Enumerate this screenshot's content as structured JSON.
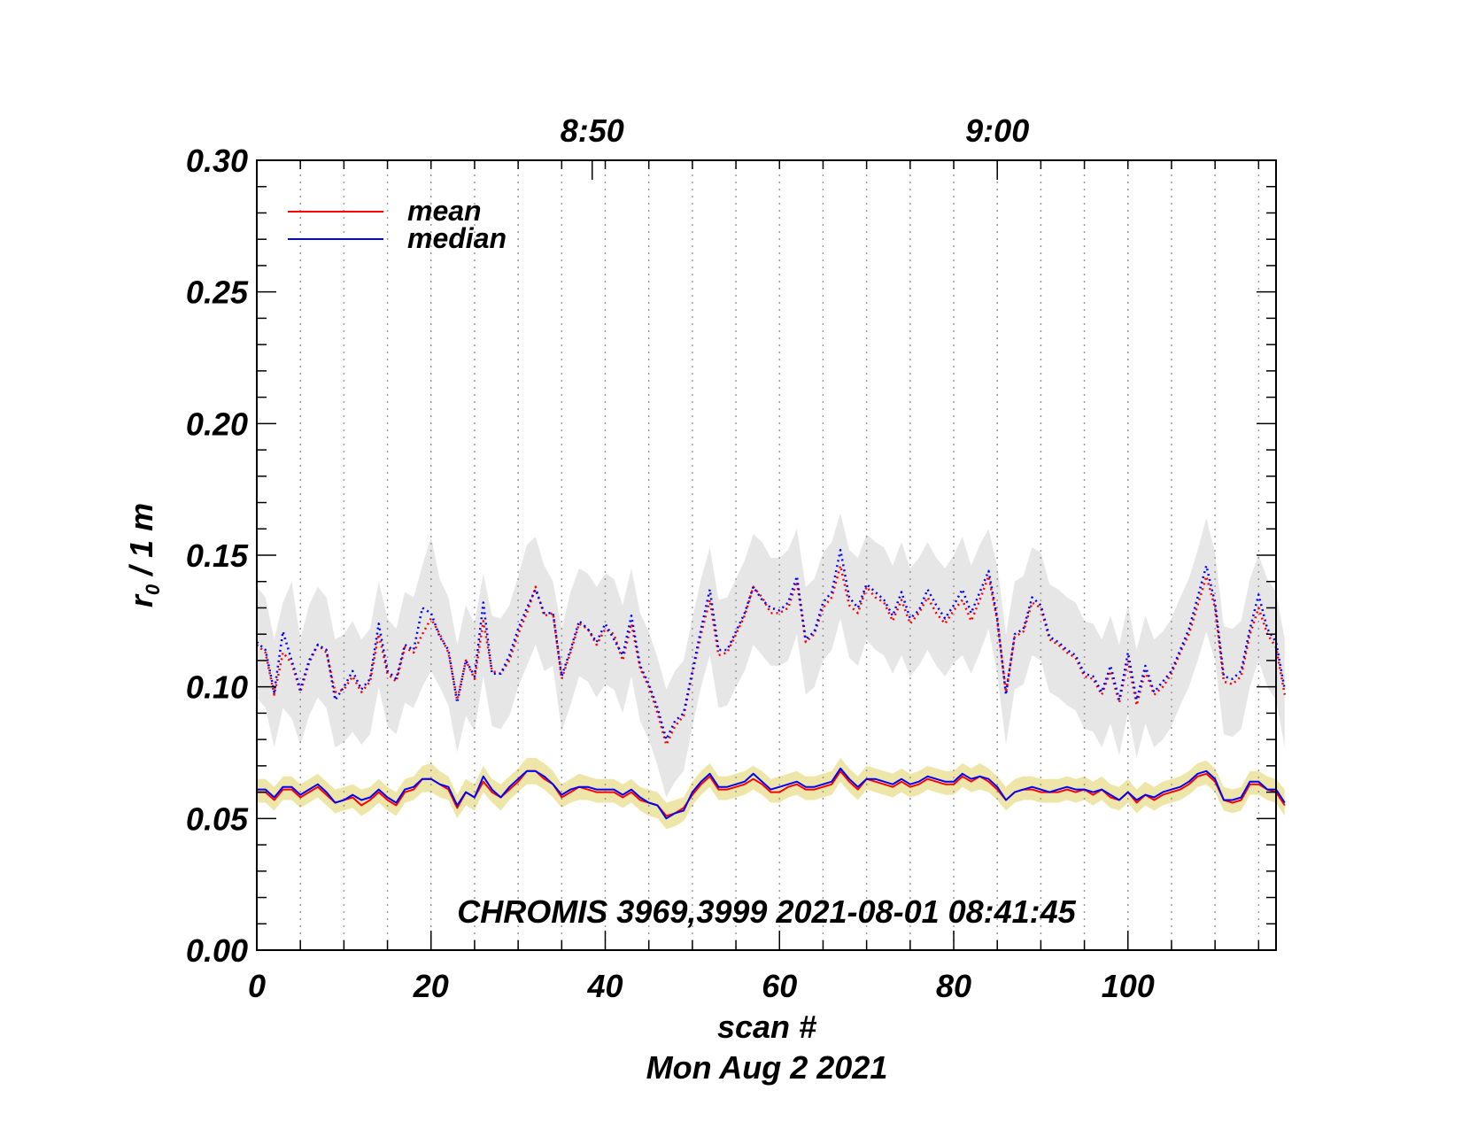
{
  "chart_data": {
    "type": "line",
    "title": "",
    "xlabel": "scan #",
    "subtitle": "Mon Aug  2 2021",
    "ylabel_main": "r",
    "ylabel_sub": "0",
    "ylabel_rest": " / 1 m",
    "annotation": "CHROMIS 3969,3999 2021-08-01 08:41:45",
    "xlim": [
      0,
      117
    ],
    "ylim": [
      0.0,
      0.3
    ],
    "x_ticks": [
      0,
      20,
      40,
      60,
      80,
      100
    ],
    "x_tick_labels": [
      "0",
      "20",
      "40",
      "60",
      "80",
      "100"
    ],
    "y_ticks": [
      0.0,
      0.05,
      0.1,
      0.15,
      0.2,
      0.25,
      0.3
    ],
    "y_tick_labels": [
      "0.00",
      "0.05",
      "0.10",
      "0.15",
      "0.20",
      "0.25",
      "0.30"
    ],
    "top_axis": {
      "ticks": [
        38.5,
        85.0
      ],
      "labels": [
        "8:50",
        "9:00"
      ]
    },
    "vertical_grid_scans": [
      0,
      5,
      10,
      15,
      20,
      25,
      30,
      35,
      40,
      45,
      50,
      55,
      60,
      65,
      70,
      75,
      80,
      85,
      90,
      95,
      100,
      105,
      110,
      115
    ],
    "legend": [
      {
        "name": "mean",
        "color": "#ff0000"
      },
      {
        "name": "median",
        "color": "#0000ff"
      }
    ],
    "colors": {
      "mean": "#ff0000",
      "median": "#0000ff",
      "band_upper": "#e6e6e6",
      "band_lower": "#eee6a8",
      "grid": "#9a9a9a"
    },
    "series": [
      {
        "name": "upper mean (dotted)",
        "style": "dotted",
        "color": "#ff0000",
        "values": [
          0.116,
          0.113,
          0.097,
          0.113,
          0.109,
          0.098,
          0.109,
          0.116,
          0.113,
          0.098,
          0.099,
          0.104,
          0.098,
          0.102,
          0.12,
          0.105,
          0.102,
          0.115,
          0.113,
          0.12,
          0.126,
          0.12,
          0.113,
          0.095,
          0.11,
          0.103,
          0.125,
          0.106,
          0.105,
          0.11,
          0.12,
          0.128,
          0.138,
          0.127,
          0.128,
          0.103,
          0.113,
          0.124,
          0.122,
          0.116,
          0.122,
          0.12,
          0.11,
          0.124,
          0.107,
          0.1,
          0.09,
          0.078,
          0.085,
          0.089,
          0.105,
          0.12,
          0.133,
          0.112,
          0.113,
          0.12,
          0.127,
          0.138,
          0.134,
          0.128,
          0.128,
          0.13,
          0.14,
          0.117,
          0.12,
          0.13,
          0.134,
          0.146,
          0.131,
          0.128,
          0.138,
          0.134,
          0.132,
          0.125,
          0.133,
          0.124,
          0.128,
          0.134,
          0.128,
          0.124,
          0.129,
          0.133,
          0.125,
          0.133,
          0.142,
          0.125,
          0.098,
          0.119,
          0.121,
          0.132,
          0.13,
          0.118,
          0.116,
          0.113,
          0.111,
          0.104,
          0.103,
          0.097,
          0.106,
          0.094,
          0.11,
          0.093,
          0.106,
          0.097,
          0.1,
          0.105,
          0.113,
          0.12,
          0.131,
          0.142,
          0.13,
          0.102,
          0.101,
          0.104,
          0.12,
          0.13,
          0.12,
          0.115,
          0.097
        ]
      },
      {
        "name": "upper median (dotted)",
        "style": "dotted",
        "color": "#0000ff",
        "values": [
          0.117,
          0.114,
          0.098,
          0.121,
          0.11,
          0.099,
          0.11,
          0.116,
          0.114,
          0.095,
          0.1,
          0.106,
          0.099,
          0.103,
          0.124,
          0.106,
          0.103,
          0.116,
          0.114,
          0.13,
          0.128,
          0.119,
          0.114,
          0.094,
          0.11,
          0.104,
          0.132,
          0.105,
          0.105,
          0.112,
          0.122,
          0.13,
          0.137,
          0.128,
          0.128,
          0.104,
          0.114,
          0.125,
          0.122,
          0.117,
          0.124,
          0.118,
          0.112,
          0.127,
          0.108,
          0.101,
          0.092,
          0.08,
          0.087,
          0.09,
          0.106,
          0.122,
          0.137,
          0.114,
          0.114,
          0.121,
          0.128,
          0.138,
          0.133,
          0.13,
          0.129,
          0.132,
          0.142,
          0.118,
          0.121,
          0.132,
          0.136,
          0.152,
          0.134,
          0.13,
          0.139,
          0.136,
          0.133,
          0.127,
          0.136,
          0.126,
          0.129,
          0.137,
          0.131,
          0.126,
          0.131,
          0.137,
          0.128,
          0.136,
          0.144,
          0.126,
          0.097,
          0.12,
          0.122,
          0.134,
          0.131,
          0.119,
          0.117,
          0.114,
          0.112,
          0.105,
          0.104,
          0.098,
          0.108,
          0.095,
          0.113,
          0.095,
          0.108,
          0.098,
          0.102,
          0.106,
          0.114,
          0.122,
          0.134,
          0.146,
          0.132,
          0.104,
          0.103,
          0.106,
          0.122,
          0.135,
          0.122,
          0.117,
          0.099
        ]
      },
      {
        "name": "lower mean",
        "style": "solid",
        "color": "#ff0000",
        "values": [
          0.06,
          0.06,
          0.057,
          0.061,
          0.061,
          0.058,
          0.06,
          0.062,
          0.059,
          0.056,
          0.057,
          0.058,
          0.055,
          0.057,
          0.06,
          0.057,
          0.055,
          0.06,
          0.061,
          0.065,
          0.065,
          0.063,
          0.061,
          0.054,
          0.06,
          0.058,
          0.064,
          0.06,
          0.058,
          0.061,
          0.064,
          0.068,
          0.068,
          0.065,
          0.063,
          0.058,
          0.06,
          0.062,
          0.061,
          0.06,
          0.06,
          0.06,
          0.058,
          0.06,
          0.057,
          0.056,
          0.055,
          0.051,
          0.052,
          0.054,
          0.059,
          0.063,
          0.066,
          0.061,
          0.061,
          0.062,
          0.063,
          0.065,
          0.063,
          0.06,
          0.06,
          0.062,
          0.063,
          0.061,
          0.061,
          0.062,
          0.063,
          0.068,
          0.064,
          0.061,
          0.065,
          0.064,
          0.063,
          0.062,
          0.064,
          0.062,
          0.063,
          0.065,
          0.064,
          0.063,
          0.063,
          0.066,
          0.064,
          0.066,
          0.064,
          0.061,
          0.057,
          0.06,
          0.061,
          0.061,
          0.06,
          0.06,
          0.06,
          0.061,
          0.06,
          0.061,
          0.059,
          0.061,
          0.058,
          0.057,
          0.06,
          0.056,
          0.059,
          0.057,
          0.059,
          0.06,
          0.061,
          0.063,
          0.066,
          0.067,
          0.064,
          0.057,
          0.056,
          0.057,
          0.063,
          0.063,
          0.061,
          0.06,
          0.055
        ]
      },
      {
        "name": "lower median",
        "style": "solid",
        "color": "#0000ff",
        "values": [
          0.061,
          0.061,
          0.058,
          0.062,
          0.062,
          0.059,
          0.061,
          0.063,
          0.06,
          0.056,
          0.057,
          0.059,
          0.057,
          0.058,
          0.061,
          0.058,
          0.056,
          0.061,
          0.062,
          0.065,
          0.065,
          0.063,
          0.062,
          0.055,
          0.06,
          0.058,
          0.066,
          0.061,
          0.058,
          0.062,
          0.065,
          0.068,
          0.068,
          0.066,
          0.063,
          0.059,
          0.061,
          0.062,
          0.062,
          0.061,
          0.061,
          0.061,
          0.059,
          0.061,
          0.058,
          0.056,
          0.055,
          0.05,
          0.052,
          0.053,
          0.06,
          0.064,
          0.067,
          0.062,
          0.062,
          0.063,
          0.064,
          0.067,
          0.064,
          0.061,
          0.062,
          0.063,
          0.064,
          0.062,
          0.062,
          0.063,
          0.064,
          0.069,
          0.065,
          0.062,
          0.065,
          0.065,
          0.064,
          0.063,
          0.065,
          0.063,
          0.064,
          0.066,
          0.065,
          0.064,
          0.064,
          0.067,
          0.065,
          0.066,
          0.065,
          0.062,
          0.057,
          0.06,
          0.061,
          0.062,
          0.061,
          0.06,
          0.061,
          0.062,
          0.061,
          0.061,
          0.06,
          0.061,
          0.059,
          0.057,
          0.06,
          0.057,
          0.059,
          0.058,
          0.06,
          0.061,
          0.062,
          0.064,
          0.067,
          0.068,
          0.065,
          0.057,
          0.057,
          0.058,
          0.064,
          0.064,
          0.061,
          0.061,
          0.056
        ]
      }
    ],
    "bands": [
      {
        "name": "upper spread",
        "color": "#e6e6e6",
        "upper": [
          0.138,
          0.134,
          0.118,
          0.132,
          0.14,
          0.118,
          0.131,
          0.138,
          0.134,
          0.118,
          0.12,
          0.125,
          0.118,
          0.122,
          0.14,
          0.126,
          0.122,
          0.136,
          0.134,
          0.146,
          0.157,
          0.141,
          0.134,
          0.116,
          0.131,
          0.124,
          0.143,
          0.127,
          0.126,
          0.131,
          0.142,
          0.154,
          0.157,
          0.146,
          0.14,
          0.122,
          0.136,
          0.145,
          0.143,
          0.138,
          0.143,
          0.141,
          0.131,
          0.145,
          0.128,
          0.121,
          0.111,
          0.099,
          0.106,
          0.11,
          0.126,
          0.141,
          0.153,
          0.133,
          0.134,
          0.141,
          0.148,
          0.158,
          0.155,
          0.149,
          0.149,
          0.152,
          0.16,
          0.138,
          0.141,
          0.151,
          0.155,
          0.166,
          0.152,
          0.149,
          0.158,
          0.155,
          0.153,
          0.146,
          0.155,
          0.145,
          0.149,
          0.155,
          0.149,
          0.145,
          0.15,
          0.157,
          0.146,
          0.154,
          0.16,
          0.146,
          0.12,
          0.14,
          0.142,
          0.153,
          0.151,
          0.139,
          0.137,
          0.134,
          0.132,
          0.125,
          0.124,
          0.118,
          0.127,
          0.116,
          0.131,
          0.114,
          0.127,
          0.118,
          0.121,
          0.126,
          0.134,
          0.141,
          0.152,
          0.164,
          0.151,
          0.123,
          0.122,
          0.125,
          0.141,
          0.15,
          0.141,
          0.136,
          0.118
        ],
        "lower": [
          0.096,
          0.092,
          0.077,
          0.092,
          0.088,
          0.078,
          0.089,
          0.096,
          0.092,
          0.077,
          0.079,
          0.083,
          0.078,
          0.082,
          0.1,
          0.085,
          0.082,
          0.094,
          0.092,
          0.1,
          0.106,
          0.1,
          0.093,
          0.075,
          0.089,
          0.083,
          0.104,
          0.085,
          0.084,
          0.089,
          0.1,
          0.108,
          0.116,
          0.106,
          0.108,
          0.083,
          0.093,
          0.104,
          0.102,
          0.096,
          0.101,
          0.099,
          0.09,
          0.104,
          0.087,
          0.08,
          0.07,
          0.058,
          0.064,
          0.068,
          0.085,
          0.1,
          0.112,
          0.092,
          0.093,
          0.1,
          0.106,
          0.116,
          0.112,
          0.108,
          0.108,
          0.11,
          0.12,
          0.097,
          0.1,
          0.11,
          0.114,
          0.126,
          0.111,
          0.108,
          0.118,
          0.114,
          0.112,
          0.105,
          0.112,
          0.104,
          0.108,
          0.114,
          0.108,
          0.104,
          0.109,
          0.112,
          0.105,
          0.113,
          0.122,
          0.105,
          0.078,
          0.099,
          0.101,
          0.112,
          0.11,
          0.098,
          0.096,
          0.093,
          0.091,
          0.084,
          0.083,
          0.077,
          0.086,
          0.074,
          0.09,
          0.073,
          0.086,
          0.077,
          0.08,
          0.085,
          0.093,
          0.1,
          0.11,
          0.121,
          0.11,
          0.082,
          0.081,
          0.084,
          0.1,
          0.11,
          0.1,
          0.095,
          0.077
        ]
      },
      {
        "name": "lower spread",
        "color": "#eee6a8",
        "upper": [
          0.065,
          0.065,
          0.062,
          0.066,
          0.066,
          0.063,
          0.065,
          0.067,
          0.064,
          0.061,
          0.062,
          0.063,
          0.061,
          0.062,
          0.065,
          0.062,
          0.06,
          0.065,
          0.066,
          0.07,
          0.071,
          0.068,
          0.066,
          0.059,
          0.065,
          0.063,
          0.07,
          0.065,
          0.063,
          0.066,
          0.069,
          0.073,
          0.073,
          0.071,
          0.068,
          0.063,
          0.065,
          0.067,
          0.066,
          0.065,
          0.065,
          0.065,
          0.063,
          0.065,
          0.062,
          0.061,
          0.06,
          0.056,
          0.057,
          0.058,
          0.064,
          0.068,
          0.071,
          0.066,
          0.066,
          0.067,
          0.068,
          0.07,
          0.068,
          0.065,
          0.066,
          0.067,
          0.068,
          0.066,
          0.066,
          0.067,
          0.068,
          0.073,
          0.069,
          0.066,
          0.07,
          0.069,
          0.068,
          0.067,
          0.069,
          0.067,
          0.068,
          0.07,
          0.069,
          0.068,
          0.068,
          0.071,
          0.069,
          0.071,
          0.069,
          0.066,
          0.062,
          0.065,
          0.066,
          0.066,
          0.065,
          0.065,
          0.065,
          0.066,
          0.065,
          0.066,
          0.064,
          0.066,
          0.063,
          0.062,
          0.065,
          0.061,
          0.064,
          0.062,
          0.064,
          0.065,
          0.066,
          0.068,
          0.071,
          0.072,
          0.069,
          0.062,
          0.061,
          0.062,
          0.068,
          0.068,
          0.066,
          0.065,
          0.061
        ],
        "lower": [
          0.056,
          0.056,
          0.053,
          0.057,
          0.057,
          0.054,
          0.056,
          0.058,
          0.055,
          0.052,
          0.053,
          0.054,
          0.051,
          0.053,
          0.056,
          0.053,
          0.051,
          0.056,
          0.057,
          0.06,
          0.06,
          0.058,
          0.057,
          0.05,
          0.055,
          0.053,
          0.06,
          0.056,
          0.053,
          0.057,
          0.06,
          0.063,
          0.063,
          0.061,
          0.058,
          0.054,
          0.056,
          0.057,
          0.057,
          0.056,
          0.056,
          0.056,
          0.054,
          0.056,
          0.053,
          0.051,
          0.05,
          0.046,
          0.047,
          0.049,
          0.055,
          0.059,
          0.062,
          0.057,
          0.057,
          0.058,
          0.059,
          0.061,
          0.059,
          0.056,
          0.056,
          0.058,
          0.059,
          0.057,
          0.057,
          0.058,
          0.059,
          0.064,
          0.06,
          0.057,
          0.061,
          0.06,
          0.059,
          0.058,
          0.06,
          0.058,
          0.059,
          0.061,
          0.06,
          0.059,
          0.059,
          0.062,
          0.06,
          0.061,
          0.06,
          0.057,
          0.053,
          0.056,
          0.057,
          0.057,
          0.056,
          0.056,
          0.056,
          0.057,
          0.056,
          0.057,
          0.055,
          0.057,
          0.054,
          0.053,
          0.056,
          0.052,
          0.055,
          0.053,
          0.055,
          0.056,
          0.057,
          0.059,
          0.062,
          0.063,
          0.06,
          0.053,
          0.052,
          0.053,
          0.059,
          0.059,
          0.057,
          0.056,
          0.051
        ]
      }
    ]
  }
}
